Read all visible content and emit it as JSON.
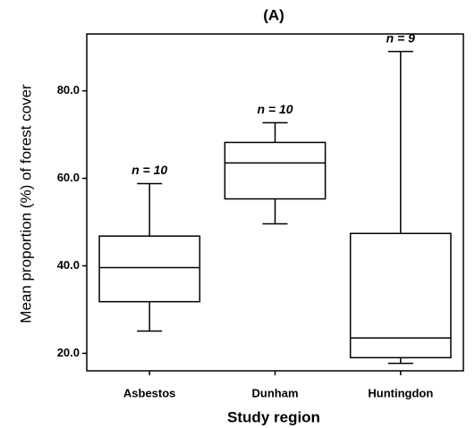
{
  "chart_data": {
    "type": "box",
    "title": "(A)",
    "x_label": "Study region",
    "y_label": "Mean proportion (%) of forest cover",
    "categories": [
      "Asbestos",
      "Dunham",
      "Huntingdon"
    ],
    "min": [
      25.1,
      49.6,
      17.7
    ],
    "q1": [
      31.8,
      55.3,
      19.0
    ],
    "median": [
      39.6,
      63.5,
      23.5
    ],
    "q3": [
      46.8,
      68.2,
      47.4
    ],
    "max": [
      58.8,
      72.7,
      89.0
    ],
    "annotations": [
      "n = 10",
      "n = 10",
      "n = 9"
    ],
    "ylim": [
      16,
      93
    ],
    "yticks": [
      {
        "value": 20,
        "label": "20.0"
      },
      {
        "value": 40,
        "label": "40.0"
      },
      {
        "value": 60,
        "label": "60.0"
      },
      {
        "value": 80,
        "label": "80.0"
      }
    ],
    "color": "#000000"
  }
}
